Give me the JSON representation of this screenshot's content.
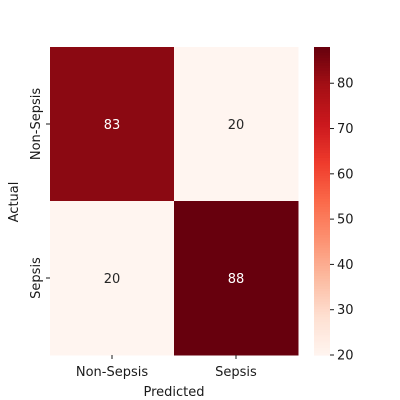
{
  "chart_data": {
    "type": "heatmap",
    "title": "",
    "xlabel": "Predicted",
    "ylabel": "Actual",
    "x_categories": [
      "Non-Sepsis",
      "Sepsis"
    ],
    "y_categories": [
      "Non-Sepsis",
      "Sepsis"
    ],
    "values": [
      [
        83,
        20
      ],
      [
        20,
        88
      ]
    ],
    "colorbar": {
      "min": 20,
      "max": 88,
      "ticks": [
        20,
        30,
        40,
        50,
        60,
        70,
        80
      ],
      "colormap": "Reds"
    },
    "annotations": true
  },
  "colors": {
    "low": "#fff5f0",
    "high": "#67000d"
  }
}
